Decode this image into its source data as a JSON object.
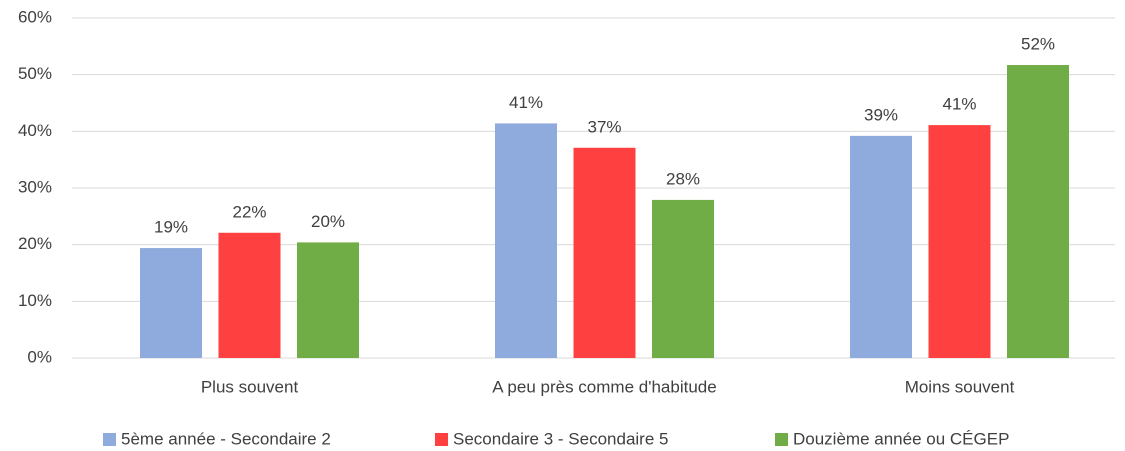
{
  "chart_data": {
    "type": "bar",
    "categories": [
      "Plus souvent",
      "A peu près comme d'habitude",
      "Moins souvent"
    ],
    "series": [
      {
        "name": "5ème année - Secondaire 2",
        "color": "#8faadc",
        "values": [
          19.4,
          41.4,
          39.2
        ],
        "value_labels": [
          "19%",
          "41%",
          "39%"
        ]
      },
      {
        "name": "Secondaire 3 - Secondaire 5",
        "color": "#ff4040",
        "values": [
          22.1,
          37.1,
          41.1
        ],
        "value_labels": [
          "22%",
          "37%",
          "41%"
        ]
      },
      {
        "name": "Douzième année ou CÉGEP",
        "color": "#70ad47",
        "values": [
          20.4,
          27.9,
          51.7
        ],
        "value_labels": [
          "20%",
          "28%",
          "52%"
        ]
      }
    ],
    "ylim": [
      0,
      60
    ],
    "yticks": [
      {
        "value": 0,
        "label": "0%"
      },
      {
        "value": 10,
        "label": "10%"
      },
      {
        "value": 20,
        "label": "20%"
      },
      {
        "value": 30,
        "label": "30%"
      },
      {
        "value": 40,
        "label": "40%"
      },
      {
        "value": 50,
        "label": "50%"
      },
      {
        "value": 60,
        "label": "60%"
      }
    ],
    "grid": true,
    "legend": "bottom"
  }
}
